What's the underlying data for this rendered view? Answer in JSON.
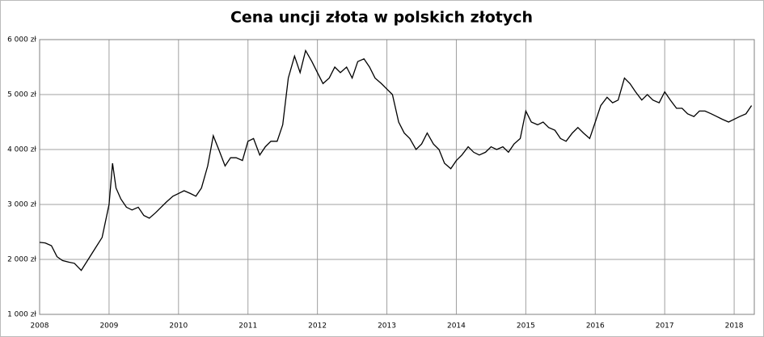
{
  "chart_data": {
    "type": "line",
    "title": "Cena uncji złota w polskich złotych",
    "x": [
      2008.0,
      2008.08,
      2008.17,
      2008.25,
      2008.33,
      2008.42,
      2008.5,
      2008.6,
      2008.7,
      2008.8,
      2008.9,
      2009.0,
      2009.05,
      2009.1,
      2009.17,
      2009.25,
      2009.33,
      2009.42,
      2009.5,
      2009.58,
      2009.67,
      2009.75,
      2009.83,
      2009.92,
      2010.0,
      2010.08,
      2010.17,
      2010.25,
      2010.33,
      2010.42,
      2010.5,
      2010.58,
      2010.67,
      2010.75,
      2010.83,
      2010.92,
      2011.0,
      2011.08,
      2011.17,
      2011.25,
      2011.33,
      2011.42,
      2011.5,
      2011.58,
      2011.67,
      2011.75,
      2011.83,
      2011.92,
      2012.0,
      2012.08,
      2012.17,
      2012.25,
      2012.33,
      2012.42,
      2012.5,
      2012.58,
      2012.67,
      2012.75,
      2012.83,
      2012.92,
      2013.0,
      2013.08,
      2013.17,
      2013.25,
      2013.33,
      2013.42,
      2013.5,
      2013.58,
      2013.67,
      2013.75,
      2013.83,
      2013.92,
      2014.0,
      2014.08,
      2014.17,
      2014.25,
      2014.33,
      2014.42,
      2014.5,
      2014.58,
      2014.67,
      2014.75,
      2014.83,
      2014.92,
      2015.0,
      2015.08,
      2015.17,
      2015.25,
      2015.33,
      2015.42,
      2015.5,
      2015.58,
      2015.67,
      2015.75,
      2015.83,
      2015.92,
      2016.0,
      2016.08,
      2016.17,
      2016.25,
      2016.33,
      2016.42,
      2016.5,
      2016.58,
      2016.67,
      2016.75,
      2016.83,
      2016.92,
      2017.0,
      2017.08,
      2017.17,
      2017.25,
      2017.33,
      2017.42,
      2017.5,
      2017.58,
      2017.67,
      2017.75,
      2017.83,
      2017.92,
      2018.0,
      2018.08,
      2018.17,
      2018.25
    ],
    "values": [
      2310,
      2300,
      2250,
      2050,
      1980,
      1950,
      1930,
      1800,
      2000,
      2200,
      2400,
      3000,
      3750,
      3300,
      3100,
      2950,
      2900,
      2950,
      2800,
      2750,
      2850,
      2950,
      3050,
      3150,
      3200,
      3250,
      3200,
      3150,
      3300,
      3700,
      4250,
      4000,
      3700,
      3850,
      3850,
      3800,
      4150,
      4200,
      3900,
      4050,
      4150,
      4150,
      4450,
      5300,
      5700,
      5400,
      5800,
      5600,
      5400,
      5200,
      5300,
      5500,
      5400,
      5500,
      5300,
      5600,
      5650,
      5500,
      5300,
      5200,
      5100,
      5000,
      4500,
      4300,
      4200,
      4000,
      4100,
      4300,
      4100,
      4000,
      3750,
      3650,
      3800,
      3900,
      4050,
      3950,
      3900,
      3950,
      4050,
      4000,
      4050,
      3950,
      4100,
      4200,
      4700,
      4500,
      4450,
      4500,
      4400,
      4350,
      4200,
      4150,
      4300,
      4400,
      4300,
      4200,
      4500,
      4800,
      4950,
      4850,
      4900,
      5300,
      5200,
      5050,
      4900,
      5000,
      4900,
      4850,
      5050,
      4900,
      4750,
      4750,
      4650,
      4600,
      4700,
      4700,
      4650,
      4600,
      4550,
      4500,
      4550,
      4600,
      4650,
      4800
    ],
    "color": "#000000",
    "xlim": [
      2008,
      2018.29
    ],
    "xticks": [
      2008,
      2009,
      2010,
      2011,
      2012,
      2013,
      2014,
      2015,
      2016,
      2017,
      2018
    ],
    "ylim": [
      1000,
      6000
    ],
    "yticks": [
      {
        "value": 1000,
        "label": "1 000 zł"
      },
      {
        "value": 2000,
        "label": "2 000 zł"
      },
      {
        "value": 3000,
        "label": "3 000 zł"
      },
      {
        "value": 4000,
        "label": "4 000 zł"
      },
      {
        "value": 5000,
        "label": "5 000 zł"
      },
      {
        "value": 6000,
        "label": "6 000 zł"
      }
    ],
    "grid": true
  }
}
